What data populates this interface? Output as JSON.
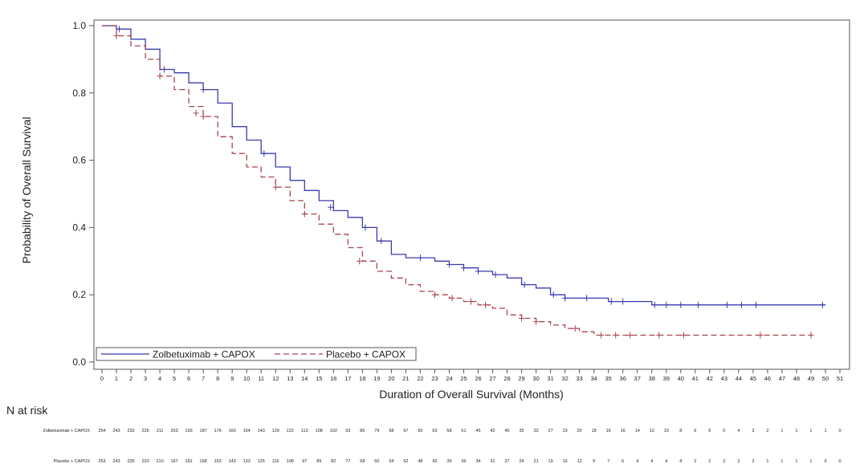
{
  "chart_data": {
    "type": "line",
    "ylabel": "Probability of Overall Survival",
    "xlabel": "Duration of Overall Survival (Months)",
    "xlim": [
      0,
      51
    ],
    "ylim": [
      0,
      1.0
    ],
    "x_ticks": [
      0,
      1,
      2,
      3,
      4,
      5,
      6,
      7,
      8,
      9,
      10,
      11,
      12,
      13,
      14,
      15,
      16,
      17,
      18,
      19,
      20,
      21,
      22,
      23,
      24,
      25,
      26,
      27,
      28,
      29,
      30,
      31,
      32,
      33,
      34,
      35,
      36,
      37,
      38,
      39,
      40,
      41,
      42,
      43,
      44,
      45,
      46,
      47,
      48,
      49,
      50,
      51
    ],
    "y_ticks": [
      "0.0",
      "0.2",
      "0.4",
      "0.6",
      "0.8",
      "1.0"
    ],
    "legend_position": "bottom-left",
    "series": [
      {
        "name": "Zolbetuximab + CAPOX",
        "color": "#3b3bb0",
        "style": "solid",
        "points": [
          [
            0,
            1.0
          ],
          [
            1,
            0.99
          ],
          [
            2,
            0.96
          ],
          [
            3,
            0.93
          ],
          [
            4,
            0.87
          ],
          [
            5,
            0.86
          ],
          [
            6,
            0.83
          ],
          [
            7,
            0.81
          ],
          [
            8,
            0.77
          ],
          [
            9,
            0.7
          ],
          [
            10,
            0.66
          ],
          [
            11,
            0.62
          ],
          [
            12,
            0.58
          ],
          [
            13,
            0.54
          ],
          [
            14,
            0.51
          ],
          [
            15,
            0.48
          ],
          [
            16,
            0.45
          ],
          [
            17,
            0.43
          ],
          [
            18,
            0.4
          ],
          [
            19,
            0.36
          ],
          [
            20,
            0.32
          ],
          [
            21,
            0.31
          ],
          [
            22,
            0.31
          ],
          [
            23,
            0.3
          ],
          [
            24,
            0.29
          ],
          [
            25,
            0.28
          ],
          [
            26,
            0.27
          ],
          [
            27,
            0.26
          ],
          [
            28,
            0.25
          ],
          [
            29,
            0.23
          ],
          [
            30,
            0.22
          ],
          [
            31,
            0.2
          ],
          [
            32,
            0.19
          ],
          [
            33,
            0.19
          ],
          [
            34,
            0.19
          ],
          [
            35,
            0.18
          ],
          [
            36,
            0.18
          ],
          [
            37,
            0.18
          ],
          [
            38,
            0.17
          ],
          [
            40,
            0.17
          ],
          [
            45,
            0.17
          ],
          [
            50,
            0.17
          ]
        ],
        "censors": [
          [
            1.2,
            0.99
          ],
          [
            4.3,
            0.87
          ],
          [
            7.0,
            0.81
          ],
          [
            11.2,
            0.62
          ],
          [
            15.8,
            0.46
          ],
          [
            18.2,
            0.4
          ],
          [
            19.3,
            0.36
          ],
          [
            22.0,
            0.31
          ],
          [
            24.0,
            0.29
          ],
          [
            25.0,
            0.28
          ],
          [
            26.0,
            0.27
          ],
          [
            27.2,
            0.26
          ],
          [
            29.2,
            0.23
          ],
          [
            31.2,
            0.2
          ],
          [
            32.0,
            0.19
          ],
          [
            33.5,
            0.19
          ],
          [
            35.2,
            0.18
          ],
          [
            36.0,
            0.18
          ],
          [
            38.2,
            0.17
          ],
          [
            39.0,
            0.17
          ],
          [
            40.0,
            0.17
          ],
          [
            41.2,
            0.17
          ],
          [
            43.2,
            0.17
          ],
          [
            44.2,
            0.17
          ],
          [
            45.2,
            0.17
          ],
          [
            49.8,
            0.17
          ]
        ]
      },
      {
        "name": "Placebo + CAPOX",
        "color": "#a8444e",
        "style": "dashed",
        "points": [
          [
            0,
            1.0
          ],
          [
            1,
            0.97
          ],
          [
            2,
            0.94
          ],
          [
            3,
            0.9
          ],
          [
            4,
            0.85
          ],
          [
            5,
            0.81
          ],
          [
            6,
            0.76
          ],
          [
            7,
            0.73
          ],
          [
            8,
            0.67
          ],
          [
            9,
            0.62
          ],
          [
            10,
            0.58
          ],
          [
            11,
            0.55
          ],
          [
            12,
            0.52
          ],
          [
            13,
            0.48
          ],
          [
            14,
            0.44
          ],
          [
            15,
            0.41
          ],
          [
            16,
            0.38
          ],
          [
            17,
            0.34
          ],
          [
            18,
            0.3
          ],
          [
            19,
            0.27
          ],
          [
            20,
            0.25
          ],
          [
            21,
            0.23
          ],
          [
            22,
            0.21
          ],
          [
            23,
            0.2
          ],
          [
            24,
            0.19
          ],
          [
            25,
            0.18
          ],
          [
            26,
            0.17
          ],
          [
            27,
            0.16
          ],
          [
            28,
            0.14
          ],
          [
            29,
            0.13
          ],
          [
            30,
            0.12
          ],
          [
            31,
            0.11
          ],
          [
            32,
            0.1
          ],
          [
            33,
            0.09
          ],
          [
            34,
            0.08
          ],
          [
            35,
            0.08
          ],
          [
            40,
            0.08
          ],
          [
            45,
            0.08
          ],
          [
            49,
            0.08
          ]
        ],
        "censors": [
          [
            1.0,
            0.97
          ],
          [
            4.0,
            0.85
          ],
          [
            6.5,
            0.74
          ],
          [
            7.0,
            0.73
          ],
          [
            12.0,
            0.52
          ],
          [
            14.0,
            0.44
          ],
          [
            17.8,
            0.3
          ],
          [
            23.0,
            0.2
          ],
          [
            24.2,
            0.19
          ],
          [
            25.5,
            0.18
          ],
          [
            26.5,
            0.17
          ],
          [
            29.0,
            0.13
          ],
          [
            30.0,
            0.12
          ],
          [
            32.7,
            0.1
          ],
          [
            34.5,
            0.08
          ],
          [
            35.5,
            0.08
          ],
          [
            36.5,
            0.08
          ],
          [
            38.5,
            0.08
          ],
          [
            40.2,
            0.08
          ],
          [
            45.5,
            0.08
          ],
          [
            49.0,
            0.08
          ]
        ]
      }
    ],
    "risk_table": {
      "title": "N at risk",
      "rows": [
        {
          "label": "Zolbetuximab + CAPOX",
          "values": [
            "254",
            "243",
            "233",
            "226",
            "211",
            "203",
            "193",
            "187",
            "176",
            "160",
            "154",
            "143",
            "129",
            "122",
            "113",
            "108",
            "102",
            "93",
            "86",
            "79",
            "68",
            "67",
            "65",
            "63",
            "58",
            "51",
            "45",
            "42",
            "40",
            "35",
            "32",
            "27",
            "23",
            "20",
            "18",
            "16",
            "16",
            "14",
            "12",
            "10",
            "8",
            "6",
            "5",
            "5",
            "4",
            "3",
            "2",
            "1",
            "1",
            "1",
            "1",
            "0"
          ]
        },
        {
          "label": "Placebo + CAPOX",
          "values": [
            "253",
            "243",
            "235",
            "220",
            "210",
            "197",
            "181",
            "168",
            "153",
            "143",
            "133",
            "125",
            "116",
            "106",
            "97",
            "89",
            "82",
            "77",
            "68",
            "60",
            "54",
            "52",
            "48",
            "43",
            "39",
            "36",
            "34",
            "31",
            "27",
            "24",
            "21",
            "19",
            "15",
            "12",
            "9",
            "7",
            "6",
            "4",
            "4",
            "4",
            "4",
            "2",
            "2",
            "2",
            "2",
            "2",
            "1",
            "1",
            "1",
            "1",
            "0",
            "0"
          ]
        }
      ]
    }
  }
}
